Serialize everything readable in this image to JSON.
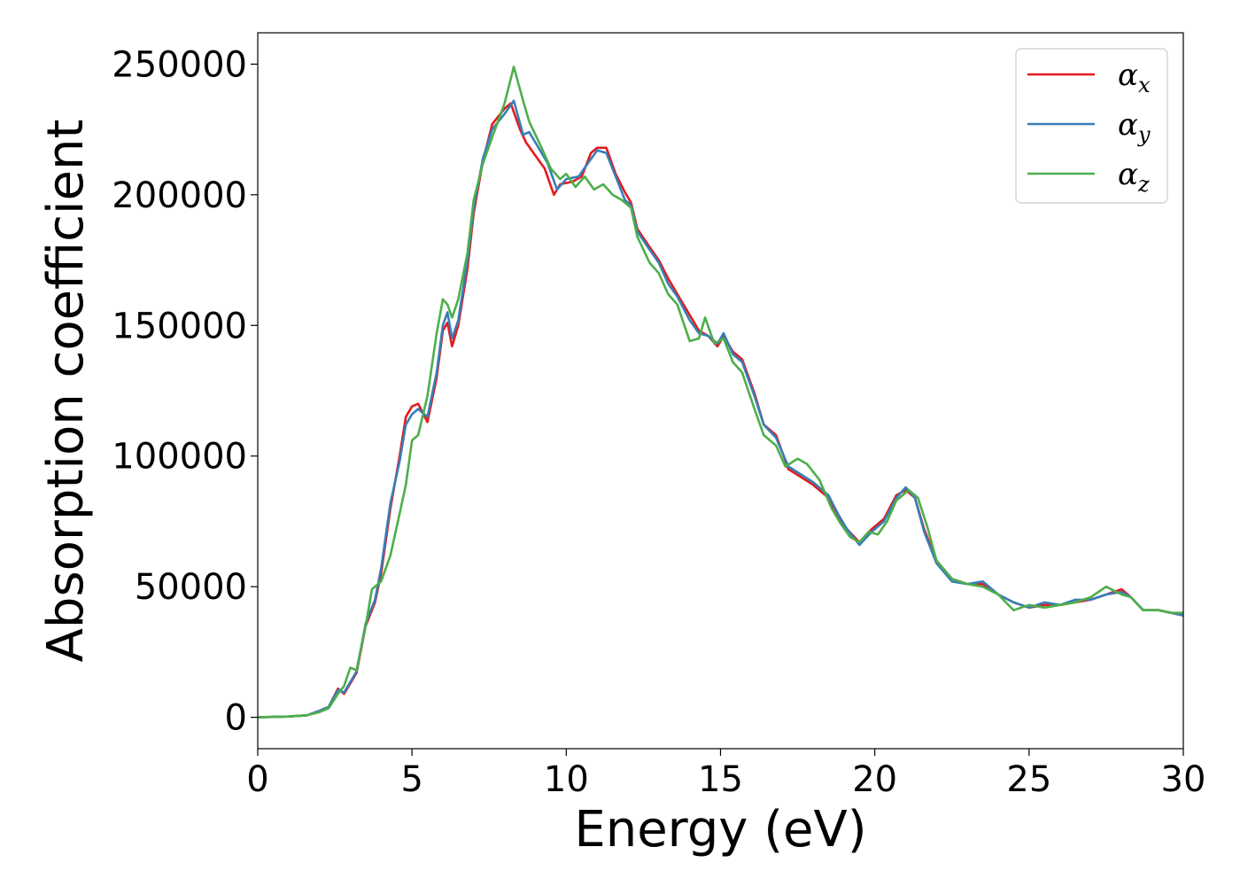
{
  "chart_data": {
    "type": "line",
    "xlabel": "Energy (eV)",
    "ylabel": "Absorption coefficient",
    "xlim": [
      0,
      30
    ],
    "ylim": [
      -12000,
      262000
    ],
    "xticks": [
      0,
      5,
      10,
      15,
      20,
      25,
      30
    ],
    "yticks": [
      0,
      50000,
      100000,
      150000,
      200000,
      250000
    ],
    "grid": false,
    "legend_position": "top-right",
    "series": [
      {
        "name": "α_x",
        "label_main": "α",
        "label_sub": "x",
        "color": "#e41a1c",
        "points": [
          [
            0,
            0
          ],
          [
            1,
            300
          ],
          [
            1.6,
            800
          ],
          [
            2,
            2500
          ],
          [
            2.3,
            4000
          ],
          [
            2.6,
            11000
          ],
          [
            2.8,
            9000
          ],
          [
            3.2,
            17000
          ],
          [
            3.5,
            35000
          ],
          [
            3.8,
            44000
          ],
          [
            4,
            55000
          ],
          [
            4.3,
            80000
          ],
          [
            4.6,
            100000
          ],
          [
            4.8,
            115000
          ],
          [
            5,
            119000
          ],
          [
            5.2,
            120000
          ],
          [
            5.5,
            113000
          ],
          [
            5.8,
            130000
          ],
          [
            6,
            148000
          ],
          [
            6.15,
            151000
          ],
          [
            6.3,
            142000
          ],
          [
            6.5,
            150000
          ],
          [
            6.8,
            172000
          ],
          [
            7,
            193000
          ],
          [
            7.3,
            213000
          ],
          [
            7.6,
            227000
          ],
          [
            8,
            233000
          ],
          [
            8.2,
            235000
          ],
          [
            8.5,
            225000
          ],
          [
            8.7,
            220000
          ],
          [
            9,
            215000
          ],
          [
            9.3,
            210000
          ],
          [
            9.6,
            200000
          ],
          [
            9.8,
            204000
          ],
          [
            10.2,
            205000
          ],
          [
            10.5,
            207000
          ],
          [
            10.8,
            216000
          ],
          [
            11,
            218000
          ],
          [
            11.3,
            218000
          ],
          [
            11.6,
            208000
          ],
          [
            11.9,
            201000
          ],
          [
            12.1,
            197000
          ],
          [
            12.3,
            187000
          ],
          [
            12.7,
            180000
          ],
          [
            13,
            175000
          ],
          [
            13.3,
            168000
          ],
          [
            13.6,
            162000
          ],
          [
            14,
            154000
          ],
          [
            14.3,
            148000
          ],
          [
            14.6,
            146000
          ],
          [
            14.9,
            142000
          ],
          [
            15.1,
            146000
          ],
          [
            15.4,
            140000
          ],
          [
            15.7,
            137000
          ],
          [
            16.1,
            124000
          ],
          [
            16.4,
            112000
          ],
          [
            16.8,
            108000
          ],
          [
            17.2,
            95000
          ],
          [
            17.6,
            92000
          ],
          [
            18,
            89000
          ],
          [
            18.5,
            84000
          ],
          [
            18.8,
            77000
          ],
          [
            19.1,
            72000
          ],
          [
            19.5,
            67000
          ],
          [
            19.9,
            72000
          ],
          [
            20.3,
            76000
          ],
          [
            20.7,
            85000
          ],
          [
            21,
            87000
          ],
          [
            21.3,
            84000
          ],
          [
            21.6,
            72000
          ],
          [
            22,
            60000
          ],
          [
            22.5,
            53000
          ],
          [
            23,
            51000
          ],
          [
            23.5,
            51000
          ],
          [
            24,
            47000
          ],
          [
            24.5,
            44000
          ],
          [
            25,
            42000
          ],
          [
            25.5,
            43000
          ],
          [
            26,
            43000
          ],
          [
            26.5,
            44000
          ],
          [
            27,
            45000
          ],
          [
            27.5,
            47000
          ],
          [
            28,
            49000
          ],
          [
            28.3,
            46000
          ],
          [
            28.7,
            41000
          ],
          [
            29.2,
            41000
          ],
          [
            29.6,
            40000
          ],
          [
            30,
            39000
          ]
        ]
      },
      {
        "name": "α_y",
        "label_main": "α",
        "label_sub": "y",
        "color": "#377eb8",
        "points": [
          [
            0,
            0
          ],
          [
            1,
            300
          ],
          [
            1.6,
            800
          ],
          [
            2,
            2500
          ],
          [
            2.3,
            4000
          ],
          [
            2.6,
            10500
          ],
          [
            2.8,
            9500
          ],
          [
            3.2,
            17500
          ],
          [
            3.5,
            36000
          ],
          [
            3.8,
            45000
          ],
          [
            4,
            57000
          ],
          [
            4.3,
            82000
          ],
          [
            4.6,
            98000
          ],
          [
            4.8,
            112000
          ],
          [
            5,
            116000
          ],
          [
            5.2,
            118000
          ],
          [
            5.5,
            115000
          ],
          [
            5.8,
            132000
          ],
          [
            6,
            150000
          ],
          [
            6.15,
            155000
          ],
          [
            6.3,
            145000
          ],
          [
            6.5,
            152000
          ],
          [
            6.8,
            175000
          ],
          [
            7,
            195000
          ],
          [
            7.3,
            214000
          ],
          [
            7.6,
            225000
          ],
          [
            8,
            231000
          ],
          [
            8.3,
            236000
          ],
          [
            8.6,
            223000
          ],
          [
            8.8,
            224000
          ],
          [
            9.1,
            218000
          ],
          [
            9.4,
            212000
          ],
          [
            9.7,
            202000
          ],
          [
            10,
            206000
          ],
          [
            10.4,
            207000
          ],
          [
            10.7,
            212000
          ],
          [
            11,
            217000
          ],
          [
            11.3,
            216000
          ],
          [
            11.6,
            207000
          ],
          [
            11.9,
            198000
          ],
          [
            12.1,
            196000
          ],
          [
            12.3,
            186000
          ],
          [
            12.7,
            179000
          ],
          [
            13,
            174000
          ],
          [
            13.3,
            166000
          ],
          [
            13.6,
            161000
          ],
          [
            14,
            152000
          ],
          [
            14.3,
            147000
          ],
          [
            14.6,
            146000
          ],
          [
            14.9,
            143000
          ],
          [
            15.1,
            147000
          ],
          [
            15.4,
            139000
          ],
          [
            15.7,
            136000
          ],
          [
            16.1,
            123000
          ],
          [
            16.4,
            112000
          ],
          [
            16.8,
            107000
          ],
          [
            17.2,
            96000
          ],
          [
            17.6,
            93000
          ],
          [
            18,
            90000
          ],
          [
            18.5,
            85000
          ],
          [
            18.8,
            78000
          ],
          [
            19.1,
            72000
          ],
          [
            19.5,
            66000
          ],
          [
            19.9,
            71000
          ],
          [
            20.3,
            75000
          ],
          [
            20.7,
            84000
          ],
          [
            21,
            88000
          ],
          [
            21.3,
            84000
          ],
          [
            21.6,
            71000
          ],
          [
            22,
            59000
          ],
          [
            22.5,
            52000
          ],
          [
            23,
            51000
          ],
          [
            23.5,
            52000
          ],
          [
            24,
            47000
          ],
          [
            24.5,
            44000
          ],
          [
            25,
            42000
          ],
          [
            25.5,
            44000
          ],
          [
            26,
            43000
          ],
          [
            26.5,
            45000
          ],
          [
            27,
            45000
          ],
          [
            27.5,
            47000
          ],
          [
            28,
            48000
          ],
          [
            28.3,
            46000
          ],
          [
            28.7,
            41000
          ],
          [
            29.2,
            41000
          ],
          [
            29.6,
            40000
          ],
          [
            30,
            39000
          ]
        ]
      },
      {
        "name": "α_z",
        "label_main": "α",
        "label_sub": "z",
        "color": "#4daf4a",
        "points": [
          [
            0,
            0
          ],
          [
            1,
            300
          ],
          [
            1.6,
            800
          ],
          [
            2,
            2000
          ],
          [
            2.3,
            3500
          ],
          [
            2.6,
            9000
          ],
          [
            2.8,
            12000
          ],
          [
            3,
            19000
          ],
          [
            3.2,
            18000
          ],
          [
            3.5,
            35000
          ],
          [
            3.7,
            49000
          ],
          [
            4,
            52000
          ],
          [
            4.3,
            62000
          ],
          [
            4.6,
            78000
          ],
          [
            4.8,
            89000
          ],
          [
            5,
            106000
          ],
          [
            5.2,
            108000
          ],
          [
            5.5,
            123000
          ],
          [
            5.8,
            147000
          ],
          [
            6,
            160000
          ],
          [
            6.15,
            158000
          ],
          [
            6.3,
            153000
          ],
          [
            6.5,
            160000
          ],
          [
            6.8,
            178000
          ],
          [
            7,
            198000
          ],
          [
            7.3,
            212000
          ],
          [
            7.6,
            222000
          ],
          [
            8,
            235000
          ],
          [
            8.3,
            249000
          ],
          [
            8.6,
            236000
          ],
          [
            8.8,
            228000
          ],
          [
            9.2,
            218000
          ],
          [
            9.5,
            210000
          ],
          [
            9.8,
            206000
          ],
          [
            10,
            208000
          ],
          [
            10.3,
            203000
          ],
          [
            10.6,
            207000
          ],
          [
            10.9,
            202000
          ],
          [
            11.2,
            204000
          ],
          [
            11.5,
            200000
          ],
          [
            11.8,
            198000
          ],
          [
            12.1,
            195000
          ],
          [
            12.3,
            184000
          ],
          [
            12.7,
            174000
          ],
          [
            13,
            170000
          ],
          [
            13.3,
            162000
          ],
          [
            13.6,
            158000
          ],
          [
            14,
            144000
          ],
          [
            14.3,
            145000
          ],
          [
            14.5,
            153000
          ],
          [
            14.8,
            143000
          ],
          [
            15.1,
            145000
          ],
          [
            15.4,
            136000
          ],
          [
            15.7,
            132000
          ],
          [
            16.1,
            118000
          ],
          [
            16.4,
            108000
          ],
          [
            16.8,
            104000
          ],
          [
            17.1,
            96000
          ],
          [
            17.5,
            99000
          ],
          [
            17.8,
            97000
          ],
          [
            18.2,
            91000
          ],
          [
            18.6,
            80000
          ],
          [
            18.9,
            74000
          ],
          [
            19.2,
            69000
          ],
          [
            19.5,
            67000
          ],
          [
            19.8,
            71000
          ],
          [
            20.1,
            70000
          ],
          [
            20.4,
            75000
          ],
          [
            20.7,
            83000
          ],
          [
            21.1,
            87000
          ],
          [
            21.4,
            84000
          ],
          [
            21.7,
            73000
          ],
          [
            22,
            60000
          ],
          [
            22.5,
            53000
          ],
          [
            23,
            51000
          ],
          [
            23.5,
            50000
          ],
          [
            24,
            47000
          ],
          [
            24.5,
            41000
          ],
          [
            25,
            43000
          ],
          [
            25.5,
            42000
          ],
          [
            26,
            43000
          ],
          [
            26.5,
            44000
          ],
          [
            27,
            46000
          ],
          [
            27.5,
            50000
          ],
          [
            28,
            47000
          ],
          [
            28.3,
            46000
          ],
          [
            28.7,
            41000
          ],
          [
            29.2,
            41000
          ],
          [
            29.6,
            40000
          ],
          [
            30,
            40000
          ]
        ]
      }
    ]
  }
}
